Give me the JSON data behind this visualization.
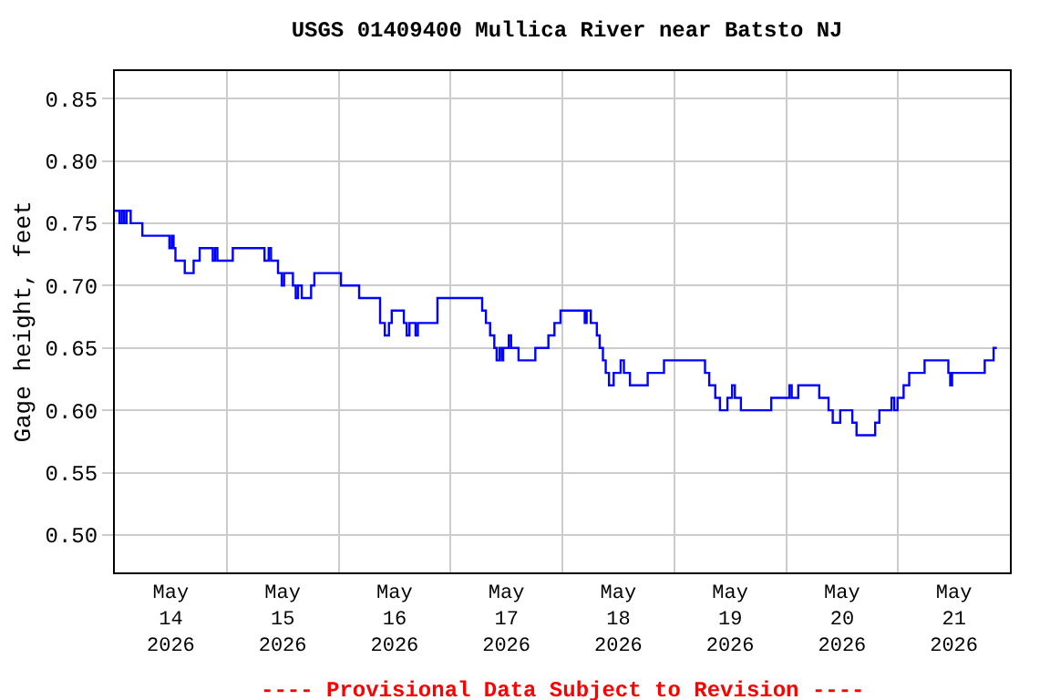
{
  "chart_data": {
    "type": "step",
    "title": "USGS 01409400 Mullica River near Batsto NJ",
    "ylabel": "Gage height, feet",
    "annotations": [
      "---- Provisional Data Subject to Revision ----"
    ],
    "x": [
      "2026-05-14T00:00",
      "2026-05-14T01:00",
      "2026-05-14T01:30",
      "2026-05-14T02:00",
      "2026-05-14T02:30",
      "2026-05-14T03:24",
      "2026-05-14T05:54",
      "2026-05-14T11:42",
      "2026-05-14T12:12",
      "2026-05-14T12:36",
      "2026-05-14T13:00",
      "2026-05-14T15:00",
      "2026-05-14T16:54",
      "2026-05-14T18:12",
      "2026-05-14T21:00",
      "2026-05-14T21:30",
      "2026-05-14T22:00",
      "2026-05-15T01:18",
      "2026-05-15T08:06",
      "2026-05-15T09:00",
      "2026-05-15T09:30",
      "2026-05-15T11:00",
      "2026-05-15T11:48",
      "2026-05-15T12:18",
      "2026-05-15T14:12",
      "2026-05-15T14:48",
      "2026-05-15T15:18",
      "2026-05-15T16:06",
      "2026-05-15T18:06",
      "2026-05-15T18:48",
      "2026-05-16T00:30",
      "2026-05-16T04:24",
      "2026-05-16T08:54",
      "2026-05-16T09:54",
      "2026-05-16T10:48",
      "2026-05-16T11:24",
      "2026-05-16T14:00",
      "2026-05-16T14:36",
      "2026-05-16T15:12",
      "2026-05-16T16:30",
      "2026-05-16T17:00",
      "2026-05-16T21:12",
      "2026-05-17T06:48",
      "2026-05-17T07:36",
      "2026-05-17T08:30",
      "2026-05-17T09:24",
      "2026-05-17T09:54",
      "2026-05-17T10:30",
      "2026-05-17T11:00",
      "2026-05-17T11:18",
      "2026-05-17T12:30",
      "2026-05-17T13:00",
      "2026-05-17T14:36",
      "2026-05-17T18:12",
      "2026-05-17T21:00",
      "2026-05-17T22:18",
      "2026-05-17T23:36",
      "2026-05-18T04:48",
      "2026-05-18T05:12",
      "2026-05-18T06:06",
      "2026-05-18T07:24",
      "2026-05-18T08:00",
      "2026-05-18T08:42",
      "2026-05-18T09:18",
      "2026-05-18T10:00",
      "2026-05-18T11:00",
      "2026-05-18T12:30",
      "2026-05-18T13:12",
      "2026-05-18T14:30",
      "2026-05-18T18:18",
      "2026-05-18T21:48",
      "2026-05-19T06:36",
      "2026-05-19T07:30",
      "2026-05-19T08:48",
      "2026-05-19T09:48",
      "2026-05-19T11:24",
      "2026-05-19T12:24",
      "2026-05-19T13:00",
      "2026-05-19T14:18",
      "2026-05-19T20:48",
      "2026-05-20T00:42",
      "2026-05-20T01:12",
      "2026-05-20T02:36",
      "2026-05-20T07:06",
      "2026-05-20T09:06",
      "2026-05-20T10:00",
      "2026-05-20T11:36",
      "2026-05-20T14:12",
      "2026-05-20T15:06",
      "2026-05-20T19:06",
      "2026-05-20T20:00",
      "2026-05-20T22:36",
      "2026-05-20T23:12",
      "2026-05-20T23:54",
      "2026-05-21T01:12",
      "2026-05-21T02:24",
      "2026-05-21T05:42",
      "2026-05-21T10:48",
      "2026-05-21T11:12",
      "2026-05-21T11:36",
      "2026-05-21T18:36",
      "2026-05-21T20:30",
      "2026-05-21T21:12"
    ],
    "series": [
      {
        "color": "#0000ff",
        "values": [
          0.76,
          0.75,
          0.76,
          0.75,
          0.76,
          0.75,
          0.74,
          0.73,
          0.74,
          0.73,
          0.72,
          0.71,
          0.72,
          0.73,
          0.72,
          0.73,
          0.72,
          0.73,
          0.72,
          0.73,
          0.72,
          0.71,
          0.7,
          0.71,
          0.7,
          0.69,
          0.7,
          0.69,
          0.7,
          0.71,
          0.7,
          0.69,
          0.67,
          0.66,
          0.67,
          0.68,
          0.67,
          0.66,
          0.67,
          0.66,
          0.67,
          0.69,
          0.68,
          0.67,
          0.66,
          0.65,
          0.64,
          0.65,
          0.64,
          0.65,
          0.66,
          0.65,
          0.64,
          0.65,
          0.66,
          0.67,
          0.68,
          0.67,
          0.68,
          0.67,
          0.66,
          0.65,
          0.64,
          0.63,
          0.62,
          0.63,
          0.64,
          0.63,
          0.62,
          0.63,
          0.64,
          0.63,
          0.62,
          0.61,
          0.6,
          0.61,
          0.62,
          0.61,
          0.6,
          0.61,
          0.62,
          0.61,
          0.62,
          0.61,
          0.6,
          0.59,
          0.6,
          0.59,
          0.58,
          0.59,
          0.6,
          0.61,
          0.6,
          0.61,
          0.62,
          0.63,
          0.64,
          0.63,
          0.62,
          0.63,
          0.64,
          0.65,
          0.65
        ]
      }
    ],
    "xlim": [
      "2026-05-14T00:00",
      "2026-05-22T00:00"
    ],
    "xticks": [
      {
        "value": "2026-05-15T00:00",
        "label": null
      },
      {
        "value": "2026-05-16T00:00",
        "label": null
      },
      {
        "value": "2026-05-17T00:00",
        "label": null
      },
      {
        "value": "2026-05-18T00:00",
        "label": null
      },
      {
        "value": "2026-05-19T00:00",
        "label": null
      },
      {
        "value": "2026-05-20T00:00",
        "label": null
      },
      {
        "value": "2026-05-21T00:00",
        "label": null
      },
      {
        "value": "2026-05-14T12:00",
        "label": "May\n14\n2026"
      },
      {
        "value": "2026-05-15T12:00",
        "label": "May\n15\n2026"
      },
      {
        "value": "2026-05-16T12:00",
        "label": "May\n16\n2026"
      },
      {
        "value": "2026-05-17T12:00",
        "label": "May\n17\n2026"
      },
      {
        "value": "2026-05-18T12:00",
        "label": "May\n18\n2026"
      },
      {
        "value": "2026-05-19T12:00",
        "label": "May\n19\n2026"
      },
      {
        "value": "2026-05-20T12:00",
        "label": "May\n20\n2026"
      },
      {
        "value": "2026-05-21T12:00",
        "label": "May\n21\n2026"
      }
    ],
    "ylim": [
      0.47,
      0.872
    ],
    "yticks": [
      {
        "value": 0.5,
        "label": "0.50"
      },
      {
        "value": 0.55,
        "label": "0.55"
      },
      {
        "value": 0.6,
        "label": "0.60"
      },
      {
        "value": 0.65,
        "label": "0.65"
      },
      {
        "value": 0.7,
        "label": "0.70"
      },
      {
        "value": 0.75,
        "label": "0.75"
      },
      {
        "value": 0.8,
        "label": "0.80"
      },
      {
        "value": 0.85,
        "label": "0.85"
      }
    ],
    "grid": true,
    "legend": false,
    "marker": "none",
    "line_style": "solid"
  }
}
